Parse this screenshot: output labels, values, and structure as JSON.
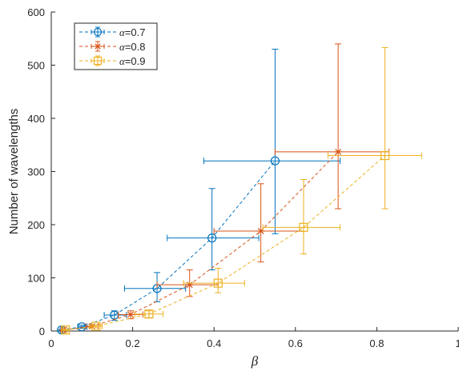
{
  "chart_data": {
    "type": "scatter",
    "title": "",
    "xlabel": "β",
    "ylabel": "Number of wavelengths",
    "xlim": [
      0,
      1
    ],
    "ylim": [
      0,
      600
    ],
    "xticks": [
      0,
      0.2,
      0.4,
      0.6,
      0.8,
      1
    ],
    "xtick_labels": [
      "0",
      "0.2",
      "0.4",
      "0.6",
      "0.8",
      "1"
    ],
    "yticks": [
      0,
      100,
      200,
      300,
      400,
      500,
      600
    ],
    "ytick_labels": [
      "0",
      "100",
      "200",
      "300",
      "400",
      "500",
      "600"
    ],
    "grid": false,
    "legend_position": "top-left",
    "series": [
      {
        "name": "α=0.7",
        "legend_symbol": "α",
        "legend_value": "=0.7",
        "color": "#0072BD",
        "marker": "circle",
        "line_style": "dashed",
        "points": [
          {
            "x": 0.025,
            "y": 2,
            "x_err": [
              0.022,
              0.028
            ],
            "y_err": [
              1,
              3
            ]
          },
          {
            "x": 0.075,
            "y": 8,
            "x_err": [
              0.065,
              0.088
            ],
            "y_err": [
              5,
              11
            ]
          },
          {
            "x": 0.155,
            "y": 30,
            "x_err": [
              0.13,
              0.185
            ],
            "y_err": [
              20,
              38
            ]
          },
          {
            "x": 0.26,
            "y": 80,
            "x_err": [
              0.18,
              0.33
            ],
            "y_err": [
              55,
              110
            ]
          },
          {
            "x": 0.395,
            "y": 175,
            "x_err": [
              0.285,
              0.51
            ],
            "y_err": [
              115,
              268
            ]
          },
          {
            "x": 0.55,
            "y": 320,
            "x_err": [
              0.375,
              0.71
            ],
            "y_err": [
              183,
              530
            ]
          }
        ]
      },
      {
        "name": "α=0.8",
        "legend_symbol": "α",
        "legend_value": "=0.8",
        "color": "#D95319",
        "marker": "star",
        "line_style": "dashed",
        "points": [
          {
            "x": 0.03,
            "y": 2,
            "x_err": [
              0.027,
              0.033
            ],
            "y_err": [
              1,
              3
            ]
          },
          {
            "x": 0.1,
            "y": 9,
            "x_err": [
              0.085,
              0.115
            ],
            "y_err": [
              6,
              12
            ]
          },
          {
            "x": 0.195,
            "y": 31,
            "x_err": [
              0.165,
              0.225
            ],
            "y_err": [
              23,
              38
            ]
          },
          {
            "x": 0.34,
            "y": 87,
            "x_err": [
              0.26,
              0.41
            ],
            "y_err": [
              65,
              115
            ]
          },
          {
            "x": 0.515,
            "y": 188,
            "x_err": [
              0.4,
              0.62
            ],
            "y_err": [
              130,
              277
            ]
          },
          {
            "x": 0.705,
            "y": 337,
            "x_err": [
              0.55,
              0.83
            ],
            "y_err": [
              230,
              540
            ]
          }
        ]
      },
      {
        "name": "α=0.9",
        "legend_symbol": "α",
        "legend_value": "=0.9",
        "color": "#EDB120",
        "marker": "square",
        "line_style": "dashed",
        "points": [
          {
            "x": 0.035,
            "y": 2,
            "x_err": [
              0.031,
              0.039
            ],
            "y_err": [
              1,
              3
            ]
          },
          {
            "x": 0.11,
            "y": 9,
            "x_err": [
              0.095,
              0.125
            ],
            "y_err": [
              6,
              12
            ]
          },
          {
            "x": 0.24,
            "y": 32,
            "x_err": [
              0.205,
              0.275
            ],
            "y_err": [
              25,
              38
            ]
          },
          {
            "x": 0.41,
            "y": 90,
            "x_err": [
              0.325,
              0.475
            ],
            "y_err": [
              72,
              118
            ]
          },
          {
            "x": 0.62,
            "y": 195,
            "x_err": [
              0.52,
              0.71
            ],
            "y_err": [
              145,
              285
            ]
          },
          {
            "x": 0.82,
            "y": 330,
            "x_err": [
              0.68,
              0.91
            ],
            "y_err": [
              230,
              533
            ]
          }
        ]
      }
    ]
  }
}
